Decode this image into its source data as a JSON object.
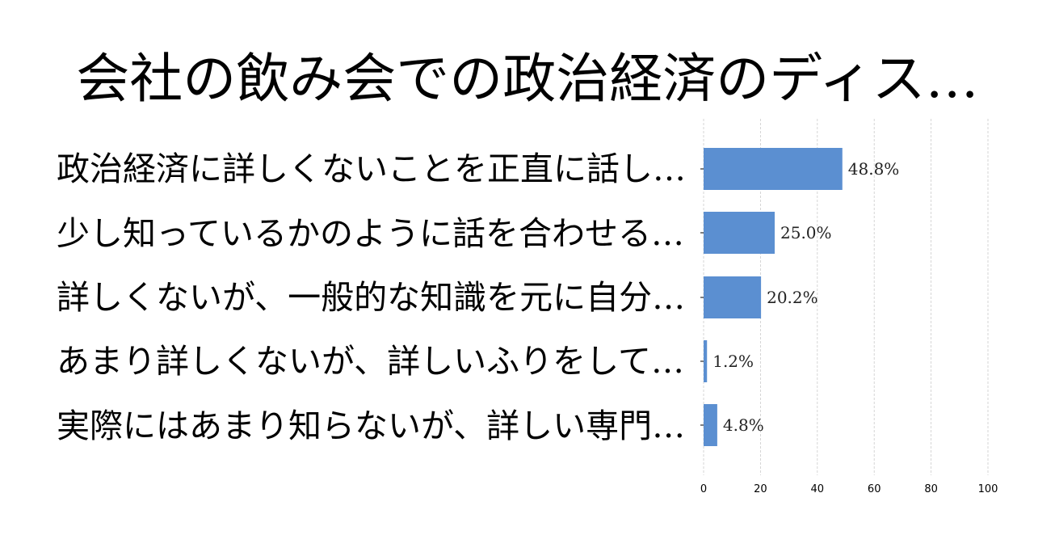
{
  "chart_data": {
    "type": "bar",
    "orientation": "horizontal",
    "title": "会社の飲み会での政治経済のディス…",
    "categories": [
      "政治経済に詳しくないことを正直に話し…",
      "少し知っているかのように話を合わせる…",
      "詳しくないが、一般的な知識を元に自分…",
      "あまり詳しくないが、詳しいふりをして…",
      "実際にはあまり知らないが、詳しい専門…"
    ],
    "values": [
      48.8,
      25.0,
      20.2,
      1.2,
      4.8
    ],
    "value_labels": [
      "48.8%",
      "25.0%",
      "20.2%",
      "1.2%",
      "4.8%"
    ],
    "xlim": [
      0,
      100
    ],
    "xticks": [
      "0",
      "20",
      "40",
      "60",
      "80",
      "100"
    ],
    "xlabel": "",
    "ylabel": "",
    "grid": "vertical dashed",
    "bar_color": "#5b8fd1"
  }
}
